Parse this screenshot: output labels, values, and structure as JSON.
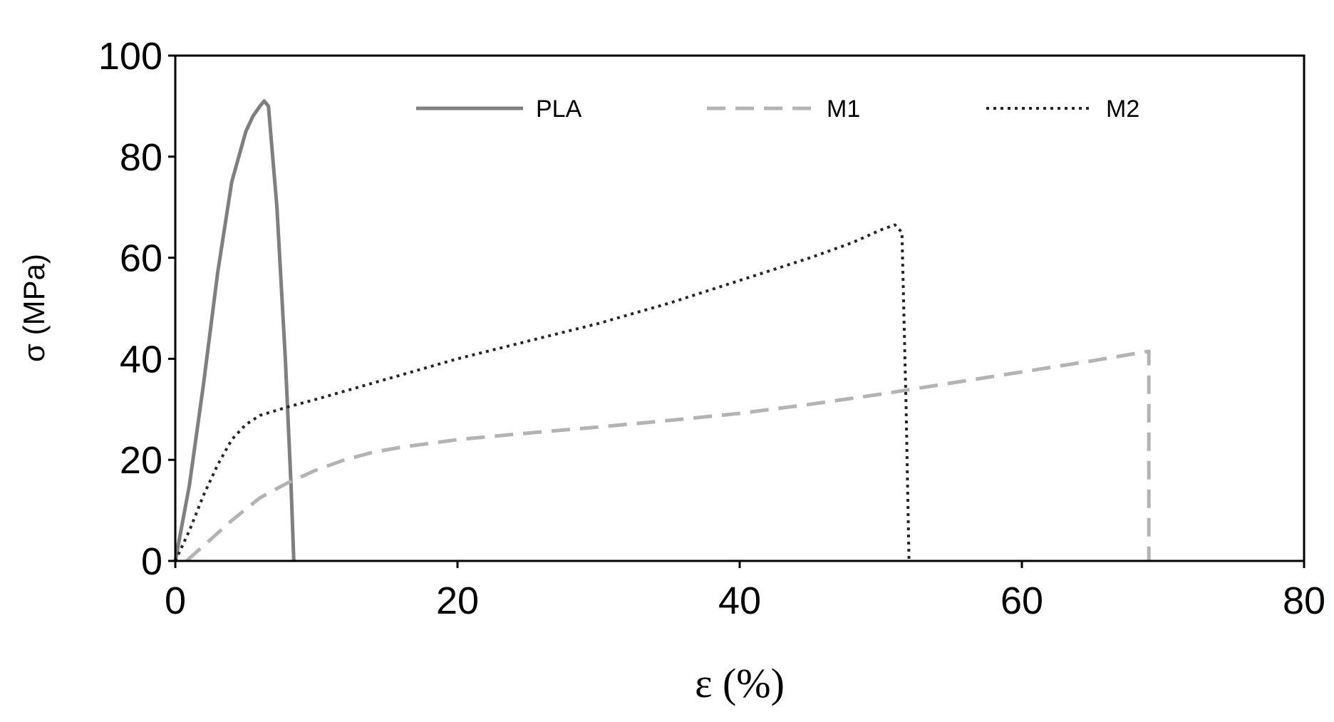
{
  "chart_data": {
    "type": "line",
    "title": "",
    "xlabel": "ε (%)",
    "ylabel": "σ (MPa)",
    "xlim": [
      0,
      80
    ],
    "ylim": [
      0,
      100
    ],
    "x_ticks": [
      0,
      20,
      40,
      60,
      80
    ],
    "y_ticks": [
      0,
      20,
      40,
      60,
      80,
      100
    ],
    "x_tick_labels": [
      "0",
      "20",
      "40",
      "60",
      "80"
    ],
    "y_tick_labels": [
      "0",
      "20",
      "40",
      "60",
      "80",
      "100"
    ],
    "grid": false,
    "legend_position": "top",
    "series": [
      {
        "name": "PLA",
        "color": "#7f7f7f",
        "dash": "solid",
        "points": [
          [
            0,
            0
          ],
          [
            1,
            15
          ],
          [
            2,
            35
          ],
          [
            3,
            57
          ],
          [
            4,
            75
          ],
          [
            5,
            85
          ],
          [
            5.5,
            88
          ],
          [
            6,
            90
          ],
          [
            6.3,
            91
          ],
          [
            6.6,
            90
          ],
          [
            7.2,
            70
          ],
          [
            7.8,
            40
          ],
          [
            8.2,
            15
          ],
          [
            8.4,
            0
          ]
        ]
      },
      {
        "name": "M1",
        "color": "#b3b3b3",
        "dash": "dashed",
        "points": [
          [
            0.8,
            0
          ],
          [
            2,
            3
          ],
          [
            4,
            8
          ],
          [
            6,
            12.5
          ],
          [
            8,
            15.5
          ],
          [
            10,
            18
          ],
          [
            12,
            20
          ],
          [
            14,
            21.5
          ],
          [
            16,
            22.5
          ],
          [
            20,
            24
          ],
          [
            25,
            25.3
          ],
          [
            30,
            26.5
          ],
          [
            35,
            27.8
          ],
          [
            40,
            29.2
          ],
          [
            45,
            31
          ],
          [
            50,
            33
          ],
          [
            55,
            35.2
          ],
          [
            60,
            37.4
          ],
          [
            65,
            39.6
          ],
          [
            69,
            41.5
          ],
          [
            69,
            0
          ]
        ]
      },
      {
        "name": "M2",
        "color": "#262626",
        "dash": "dotted",
        "points": [
          [
            0,
            0
          ],
          [
            1,
            6
          ],
          [
            2,
            13
          ],
          [
            3,
            19
          ],
          [
            4,
            24
          ],
          [
            5,
            27
          ],
          [
            6,
            28.8
          ],
          [
            8,
            30.5
          ],
          [
            10,
            32
          ],
          [
            15,
            36
          ],
          [
            20,
            40
          ],
          [
            25,
            43.5
          ],
          [
            30,
            47
          ],
          [
            35,
            51
          ],
          [
            40,
            55.5
          ],
          [
            45,
            60
          ],
          [
            48,
            63
          ],
          [
            50,
            65.5
          ],
          [
            51,
            66.5
          ],
          [
            51.5,
            65
          ],
          [
            51.8,
            30
          ],
          [
            52,
            0
          ]
        ]
      }
    ]
  }
}
